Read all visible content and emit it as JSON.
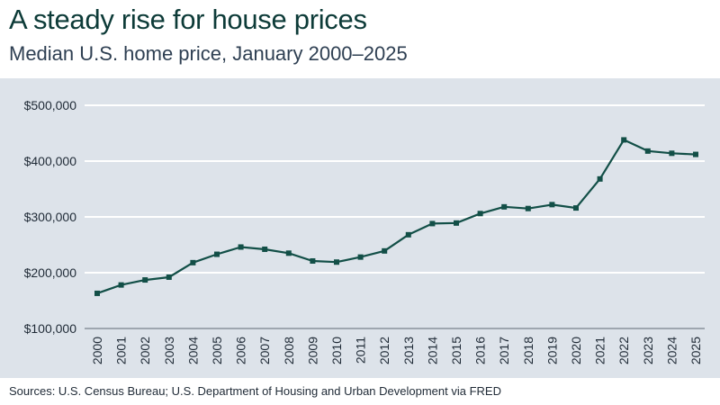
{
  "title": "A steady rise for house prices",
  "subtitle": "Median U.S. home price, January 2000–2025",
  "source": "Sources: U.S. Census Bureau; U.S. Department of Housing and Urban Development via FRED",
  "colors": {
    "line": "#124f47",
    "plot_background": "#dde3ea",
    "grid": "#ffffff",
    "title": "#0d3b38"
  },
  "chart_data": {
    "type": "line",
    "x": [
      "2000",
      "2001",
      "2002",
      "2003",
      "2004",
      "2005",
      "2006",
      "2007",
      "2008",
      "2009",
      "2010",
      "2011",
      "2012",
      "2013",
      "2014",
      "2015",
      "2016",
      "2017",
      "2018",
      "2019",
      "2020",
      "2021",
      "2022",
      "2023",
      "2024",
      "2025"
    ],
    "series": [
      {
        "values": [
          163000,
          178000,
          187000,
          192000,
          218000,
          233000,
          246000,
          242000,
          235000,
          221000,
          219000,
          228000,
          239000,
          268000,
          288000,
          289000,
          306000,
          318000,
          315000,
          322000,
          316000,
          368000,
          438000,
          418000,
          414000,
          412000
        ]
      }
    ],
    "y_ticks": [
      100000,
      200000,
      300000,
      400000,
      500000
    ],
    "y_tick_labels": [
      "$100,000",
      "$200,000",
      "$300,000",
      "$400,000",
      "$500,000"
    ],
    "ylim": [
      100000,
      500000
    ],
    "grid": true,
    "marker": "square"
  }
}
